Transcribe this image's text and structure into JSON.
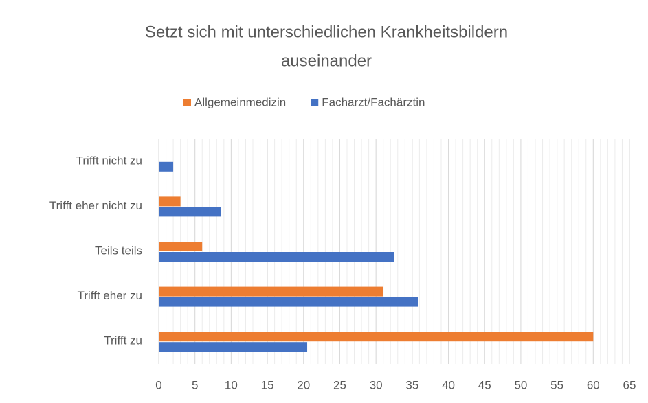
{
  "chart_data": {
    "type": "hbar",
    "title": [
      "Setzt sich mit unterschiedlichen Krankheitsbildern",
      "auseinander"
    ],
    "categories": [
      "Trifft nicht zu",
      "Trifft eher nicht zu",
      "Teils teils",
      "Trifft eher zu",
      "Trifft zu"
    ],
    "series": [
      {
        "name": "Allgemeinmedizin",
        "color": "#ed7d31",
        "values": [
          0,
          3,
          6,
          31,
          60
        ]
      },
      {
        "name": "Facharzt/Fachärztin",
        "color": "#4472c4",
        "values": [
          2,
          8.6,
          32.5,
          35.8,
          20.5
        ]
      }
    ],
    "xlim": [
      0,
      65
    ],
    "xticks": [
      0,
      5,
      10,
      15,
      20,
      25,
      30,
      35,
      40,
      45,
      50,
      55,
      60,
      65
    ],
    "grid": true,
    "minor_grid": true,
    "legend": "top"
  }
}
